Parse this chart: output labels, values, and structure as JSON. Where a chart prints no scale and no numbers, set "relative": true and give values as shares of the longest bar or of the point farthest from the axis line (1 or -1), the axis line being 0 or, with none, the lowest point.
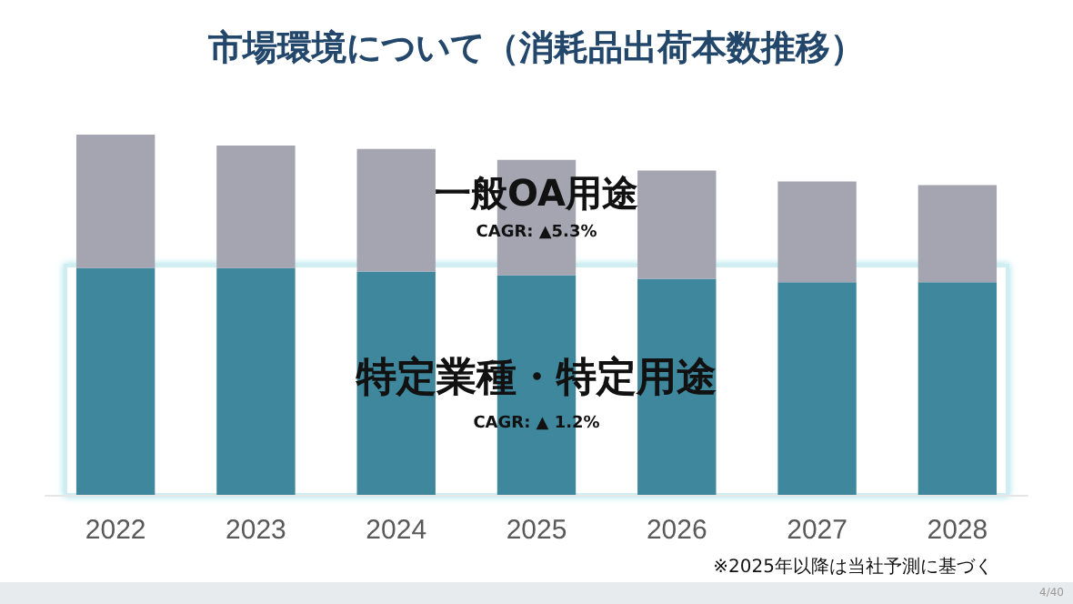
{
  "chart_data": {
    "type": "bar",
    "title": "市場環境について（消耗品出荷本数推移）",
    "categories": [
      "2022",
      "2023",
      "2024",
      "2025",
      "2026",
      "2027",
      "2028"
    ],
    "stacked": true,
    "relative": true,
    "series": [
      {
        "color": "#3e879c",
        "values": [
          0.63,
          0.63,
          0.62,
          0.61,
          0.6,
          0.59,
          0.59
        ]
      },
      {
        "color": "#a5a4b1",
        "values": [
          0.37,
          0.34,
          0.34,
          0.32,
          0.3,
          0.28,
          0.27
        ]
      }
    ],
    "annotations": [
      "一般OA用途",
      "CAGR: ▲5.3%",
      "特定業種・特定用途",
      "CAGR: ▲ 1.2%",
      "※2025年以降は当社予測に基づく",
      "4/40"
    ]
  }
}
